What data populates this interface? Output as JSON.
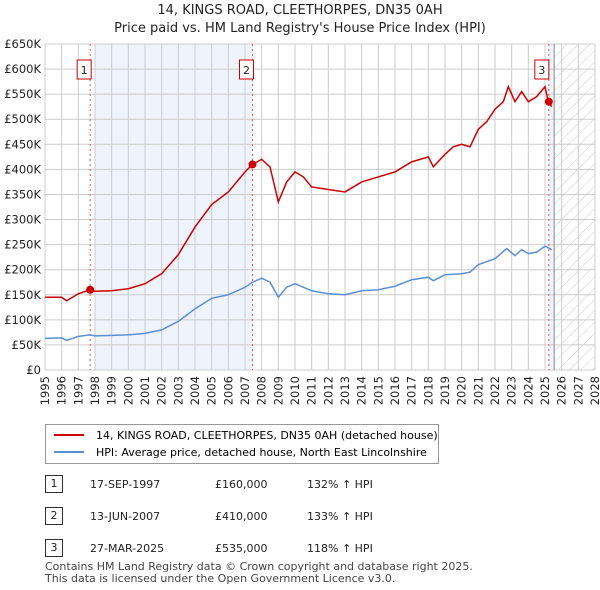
{
  "chart_data": {
    "type": "line",
    "title": "14, KINGS ROAD, CLEETHORPES, DN35 0AH",
    "subtitle": "Price paid vs. HM Land Registry's House Price Index (HPI)",
    "xlim": [
      1995,
      2028
    ],
    "ylim": [
      0,
      650000
    ],
    "x_ticks": [
      "1995",
      "1996",
      "1997",
      "1998",
      "1999",
      "2000",
      "2001",
      "2002",
      "2003",
      "2004",
      "2005",
      "2006",
      "2007",
      "2008",
      "2009",
      "2010",
      "2011",
      "2012",
      "2013",
      "2014",
      "2015",
      "2016",
      "2017",
      "2018",
      "2019",
      "2020",
      "2021",
      "2022",
      "2023",
      "2024",
      "2025",
      "2026",
      "2027",
      "2028"
    ],
    "y_ticks": [
      "£0",
      "£50K",
      "£100K",
      "£150K",
      "£200K",
      "£250K",
      "£300K",
      "£350K",
      "£400K",
      "£450K",
      "£500K",
      "£550K",
      "£600K",
      "£650K"
    ],
    "grid": true,
    "series": [
      {
        "name": "14, KINGS ROAD, CLEETHORPES, DN35 0AH (detached house)",
        "color": "#cc0000",
        "x": [
          1995,
          1996,
          1996.3,
          1997,
          1997.7,
          1998,
          1999,
          2000,
          2001,
          2002,
          2003,
          2004,
          2005,
          2006,
          2007,
          2007.45,
          2008,
          2008.5,
          2009,
          2009.5,
          2010,
          2010.5,
          2011,
          2012,
          2013,
          2014,
          2015,
          2016,
          2017,
          2018,
          2018.3,
          2019,
          2019.5,
          2020,
          2020.5,
          2021,
          2021.5,
          2022,
          2022.5,
          2022.8,
          2023.2,
          2023.6,
          2024,
          2024.5,
          2025,
          2025.2,
          2025.4
        ],
        "y": [
          145,
          145,
          138,
          152,
          160,
          157,
          158,
          162,
          172,
          192,
          230,
          285,
          330,
          355,
          395,
          410,
          420,
          405,
          335,
          375,
          395,
          385,
          365,
          360,
          355,
          375,
          385,
          395,
          415,
          425,
          405,
          430,
          445,
          450,
          445,
          480,
          495,
          520,
          535,
          565,
          535,
          555,
          535,
          545,
          565,
          535,
          525
        ]
      },
      {
        "name": "HPI: Average price, detached house, North East Lincolnshire",
        "color": "#5b8fd4",
        "x": [
          1995,
          1996,
          1996.3,
          1997,
          1997.7,
          1998,
          2000,
          2001,
          2002,
          2003,
          2004,
          2005,
          2006,
          2007,
          2007.45,
          2008,
          2008.5,
          2009,
          2009.5,
          2010,
          2011,
          2012,
          2013,
          2014,
          2015,
          2016,
          2017,
          2018,
          2018.3,
          2019,
          2020,
          2020.5,
          2021,
          2022,
          2022.7,
          2023.2,
          2023.6,
          2024,
          2024.5,
          2025,
          2025.4
        ],
        "y": [
          63,
          64,
          59,
          67,
          70,
          68,
          70,
          73,
          80,
          97,
          122,
          143,
          150,
          165,
          175,
          183,
          175,
          145,
          165,
          172,
          158,
          152,
          150,
          158,
          160,
          167,
          180,
          185,
          178,
          190,
          192,
          195,
          210,
          222,
          242,
          228,
          240,
          232,
          235,
          247,
          240
        ]
      }
    ],
    "sales": [
      {
        "label": "1",
        "x": 1997.71,
        "price": 160000,
        "date": "17-SEP-1997",
        "price_text": "£160,000",
        "hpi": "132% ↑ HPI"
      },
      {
        "label": "2",
        "x": 2007.45,
        "price": 410000,
        "date": "13-JUN-2007",
        "price_text": "£410,000",
        "hpi": "133% ↑ HPI"
      },
      {
        "label": "3",
        "x": 2025.23,
        "price": 535000,
        "date": "27-MAR-2025",
        "price_text": "£535,000",
        "hpi": "118% ↑ HPI"
      }
    ],
    "legend_placement": "below"
  },
  "footer": [
    "Contains HM Land Registry data © Crown copyright and database right 2025.",
    "This data is licensed under the Open Government Licence v3.0."
  ]
}
